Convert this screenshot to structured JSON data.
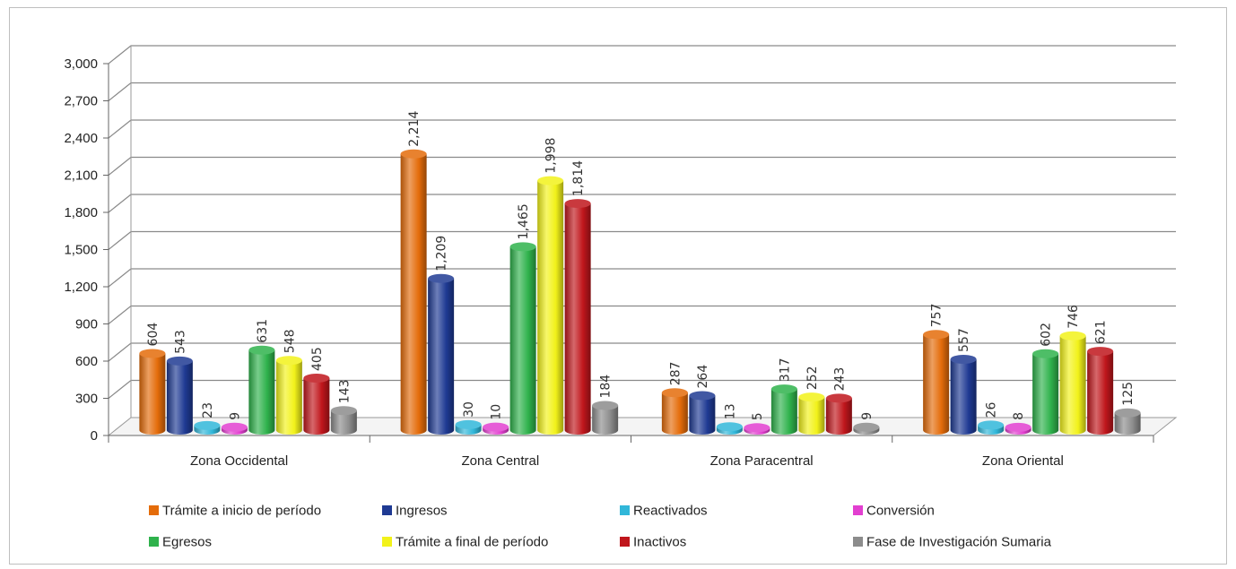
{
  "chart_data": {
    "type": "bar",
    "title": "",
    "xlabel": "",
    "ylabel": "",
    "ylim": [
      0,
      3000
    ],
    "yticks": [
      0,
      300,
      600,
      900,
      1200,
      1500,
      1800,
      2100,
      2400,
      2700,
      3000
    ],
    "ytick_labels": [
      "0",
      "300",
      "600",
      "900",
      "1,200",
      "1,500",
      "1,800",
      "2,100",
      "2,400",
      "2,700",
      "3,000"
    ],
    "grid": true,
    "legend_position": "bottom",
    "categories": [
      "Zona Occidental",
      "Zona Central",
      "Zona Paracentral",
      "Zona Oriental"
    ],
    "series": [
      {
        "name": "Trámite a inicio de período",
        "color": "#e46c0a",
        "values": [
          604,
          2214,
          287,
          757
        ],
        "labels": [
          "604",
          "2,214",
          "287",
          "757"
        ]
      },
      {
        "name": "Ingresos",
        "color": "#1f3a93",
        "values": [
          543,
          1209,
          264,
          557
        ],
        "labels": [
          "543",
          "1,209",
          "264",
          "557"
        ]
      },
      {
        "name": "Reactivados",
        "color": "#31b7d9",
        "values": [
          23,
          30,
          13,
          26
        ],
        "labels": [
          "23",
          "30",
          "13",
          "26"
        ]
      },
      {
        "name": "Conversión",
        "color": "#e23fd0",
        "values": [
          9,
          10,
          5,
          8
        ],
        "labels": [
          "9",
          "10",
          "5",
          "8"
        ]
      },
      {
        "name": "Egresos",
        "color": "#2fb24c",
        "values": [
          631,
          1465,
          317,
          602
        ],
        "labels": [
          "631",
          "1,465",
          "317",
          "602"
        ]
      },
      {
        "name": "Trámite a final de período",
        "color": "#f2f21a",
        "values": [
          548,
          1998,
          252,
          746
        ],
        "labels": [
          "548",
          "1,998",
          "252",
          "746"
        ]
      },
      {
        "name": "Inactivos",
        "color": "#c0161c",
        "values": [
          405,
          1814,
          243,
          621
        ],
        "labels": [
          "405",
          "1,814",
          "243",
          "621"
        ]
      },
      {
        "name": "Fase de Investigación Sumaria",
        "color": "#8c8c8c",
        "values": [
          143,
          184,
          9,
          125
        ],
        "labels": [
          "143",
          "184",
          "9",
          "125"
        ]
      }
    ]
  }
}
